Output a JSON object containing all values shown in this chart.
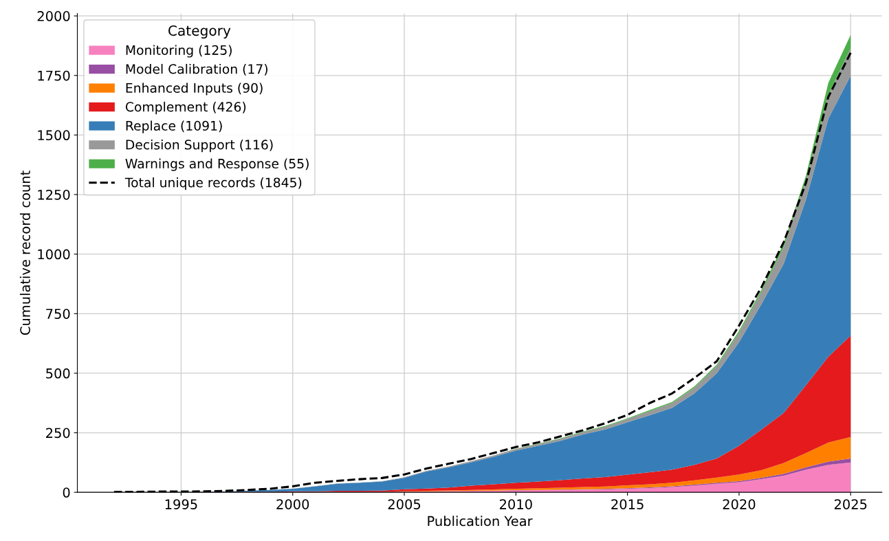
{
  "chart_data": {
    "type": "area",
    "stacked": true,
    "xlabel": "Publication Year",
    "ylabel": "Cumulative record count",
    "legend_title": "Category",
    "legend": "top left",
    "grid": true,
    "x": [
      1992,
      1993,
      1994,
      1995,
      1996,
      1997,
      1998,
      1999,
      2000,
      2001,
      2002,
      2003,
      2004,
      2005,
      2006,
      2007,
      2008,
      2009,
      2010,
      2011,
      2012,
      2013,
      2014,
      2015,
      2016,
      2017,
      2018,
      2019,
      2020,
      2021,
      2022,
      2023,
      2024,
      2025
    ],
    "xlim": [
      1990.35,
      2026.4
    ],
    "ylim": [
      0,
      2010
    ],
    "xticks": [
      1995,
      2000,
      2005,
      2010,
      2015,
      2020,
      2025
    ],
    "yticks": [
      0,
      250,
      500,
      750,
      1000,
      1250,
      1500,
      1750,
      2000
    ],
    "series": [
      {
        "name": "Monitoring (125)",
        "color": "#f781bf",
        "values": [
          0,
          0,
          0,
          0,
          0,
          0,
          0,
          0,
          1,
          1,
          2,
          2,
          2,
          3,
          4,
          5,
          6,
          7,
          8,
          9,
          10,
          11,
          12,
          15,
          18,
          22,
          28,
          36,
          42,
          55,
          70,
          95,
          115,
          125
        ]
      },
      {
        "name": "Model Calibration (17)",
        "color": "#984ea3",
        "values": [
          0,
          0,
          0,
          0,
          0,
          0,
          0,
          0,
          0,
          0,
          0,
          0,
          0,
          0,
          0,
          0,
          0,
          0,
          1,
          1,
          1,
          2,
          2,
          2,
          3,
          3,
          4,
          4,
          5,
          6,
          8,
          10,
          14,
          17
        ]
      },
      {
        "name": "Enhanced Inputs (90)",
        "color": "#ff7f00",
        "values": [
          0,
          0,
          0,
          0,
          0,
          0,
          0,
          0,
          0,
          0,
          0,
          0,
          0,
          2,
          2,
          3,
          4,
          5,
          6,
          7,
          8,
          9,
          10,
          12,
          13,
          15,
          18,
          22,
          28,
          32,
          45,
          60,
          80,
          90
        ]
      },
      {
        "name": "Complement (426)",
        "color": "#e41a1c",
        "values": [
          0,
          0,
          0,
          0,
          1,
          1,
          2,
          2,
          3,
          3,
          4,
          4,
          5,
          8,
          10,
          12,
          18,
          22,
          25,
          28,
          32,
          36,
          40,
          45,
          50,
          55,
          65,
          80,
          120,
          170,
          210,
          285,
          360,
          426
        ]
      },
      {
        "name": "Replace (1091)",
        "color": "#377eb8",
        "values": [
          1,
          1,
          1,
          1,
          2,
          3,
          5,
          8,
          11,
          21,
          30,
          34,
          38,
          48,
          72,
          85,
          98,
          115,
          135,
          150,
          165,
          185,
          200,
          220,
          240,
          260,
          300,
          358,
          435,
          527,
          627,
          780,
          1000,
          1091
        ]
      },
      {
        "name": "Decision Support (116)",
        "color": "#999999",
        "values": [
          0,
          0,
          0,
          0,
          0,
          0,
          0,
          0,
          1,
          1,
          1,
          1,
          2,
          2,
          3,
          4,
          5,
          6,
          7,
          8,
          9,
          10,
          12,
          14,
          17,
          20,
          25,
          30,
          40,
          50,
          70,
          80,
          100,
          116
        ]
      },
      {
        "name": "Warnings and Response (55)",
        "color": "#4daf4a",
        "values": [
          0,
          0,
          0,
          0,
          0,
          0,
          0,
          0,
          0,
          0,
          0,
          0,
          0,
          0,
          0,
          0,
          0,
          0,
          1,
          2,
          2,
          2,
          3,
          3,
          4,
          4,
          5,
          6,
          8,
          10,
          15,
          20,
          50,
          55
        ]
      },
      {
        "name": "Total unique records (1845)",
        "type": "line",
        "line_style": "dashed",
        "color": "#000000",
        "values": [
          2,
          2,
          3,
          3,
          4,
          6,
          10,
          15,
          25,
          40,
          48,
          55,
          60,
          75,
          100,
          120,
          140,
          165,
          190,
          210,
          235,
          260,
          290,
          325,
          375,
          415,
          480,
          550,
          700,
          860,
          1050,
          1300,
          1660,
          1845
        ]
      }
    ]
  }
}
